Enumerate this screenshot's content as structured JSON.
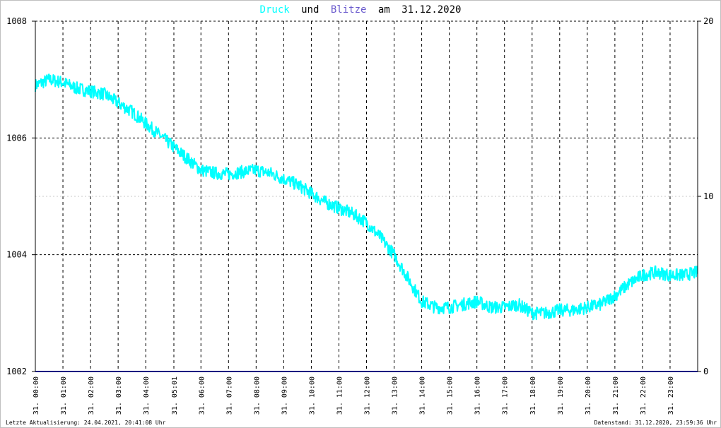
{
  "title": {
    "series1": "Druck",
    "connector1": "und",
    "series2": "Blitze",
    "connector2": "am",
    "date": "31.12.2020"
  },
  "footer": {
    "left": "Letzte Aktualisierung: 24.04.2021, 20:41:08 Uhr",
    "right": "Datenstand: 31.12.2020, 23:59:36 Uhr"
  },
  "colors": {
    "pressure": "#00ffff",
    "lightning": "#000080",
    "title_pressure": "#00ffff",
    "title_lightning": "#6a5acd",
    "grid": "#000000",
    "border": "#000000"
  },
  "chart_data": {
    "type": "line",
    "x_unit": "hours",
    "xlim": [
      0,
      24
    ],
    "y_left": {
      "lim": [
        1002,
        1008
      ],
      "ticks": [
        "1002",
        "1004",
        "1006",
        "1008"
      ]
    },
    "y_right": {
      "lim": [
        0,
        20
      ],
      "ticks": [
        "0",
        "10",
        "20"
      ]
    },
    "x_ticks": [
      "31. 00:00",
      "31. 01:00",
      "31. 02:00",
      "31. 03:00",
      "31. 04:00",
      "31. 05:01",
      "31. 06:00",
      "31. 07:00",
      "31. 08:00",
      "31. 09:00",
      "31. 10:00",
      "31. 11:00",
      "31. 12:00",
      "31. 13:00",
      "31. 14:00",
      "31. 15:00",
      "31. 16:00",
      "31. 17:00",
      "31. 18:00",
      "31. 19:00",
      "31. 20:00",
      "31. 21:00",
      "31. 22:00",
      "31. 23:00"
    ],
    "x_tick_hours": [
      0,
      1,
      2,
      3,
      4,
      5.02,
      6,
      7,
      8,
      9,
      10,
      11,
      12,
      13,
      14,
      15,
      16,
      17,
      18,
      19,
      20,
      21,
      22,
      23
    ],
    "series": [
      {
        "name": "Druck",
        "axis": "left",
        "x": [
          0,
          0.5,
          1,
          1.5,
          2,
          2.5,
          3,
          3.5,
          4,
          4.5,
          5,
          5.5,
          6,
          6.5,
          7,
          7.5,
          8,
          8.5,
          9,
          9.5,
          10,
          10.5,
          11,
          11.5,
          12,
          12.5,
          13,
          13.5,
          14,
          14.5,
          15,
          15.5,
          16,
          16.5,
          17,
          17.5,
          18,
          18.5,
          19,
          19.5,
          20,
          20.5,
          21,
          21.5,
          22,
          22.5,
          23,
          23.5,
          24
        ],
        "values": [
          1006.9,
          1007.0,
          1006.95,
          1006.85,
          1006.8,
          1006.75,
          1006.6,
          1006.45,
          1006.25,
          1006.05,
          1005.85,
          1005.65,
          1005.45,
          1005.4,
          1005.38,
          1005.42,
          1005.45,
          1005.4,
          1005.3,
          1005.2,
          1005.05,
          1004.9,
          1004.8,
          1004.7,
          1004.55,
          1004.3,
          1004.0,
          1003.6,
          1003.2,
          1003.1,
          1003.1,
          1003.15,
          1003.2,
          1003.1,
          1003.1,
          1003.15,
          1003.0,
          1003.0,
          1003.05,
          1003.05,
          1003.1,
          1003.15,
          1003.3,
          1003.5,
          1003.65,
          1003.7,
          1003.65,
          1003.65,
          1003.7
        ]
      },
      {
        "name": "Blitze",
        "axis": "right",
        "x": [
          0,
          24
        ],
        "values": [
          0,
          0
        ]
      }
    ]
  }
}
